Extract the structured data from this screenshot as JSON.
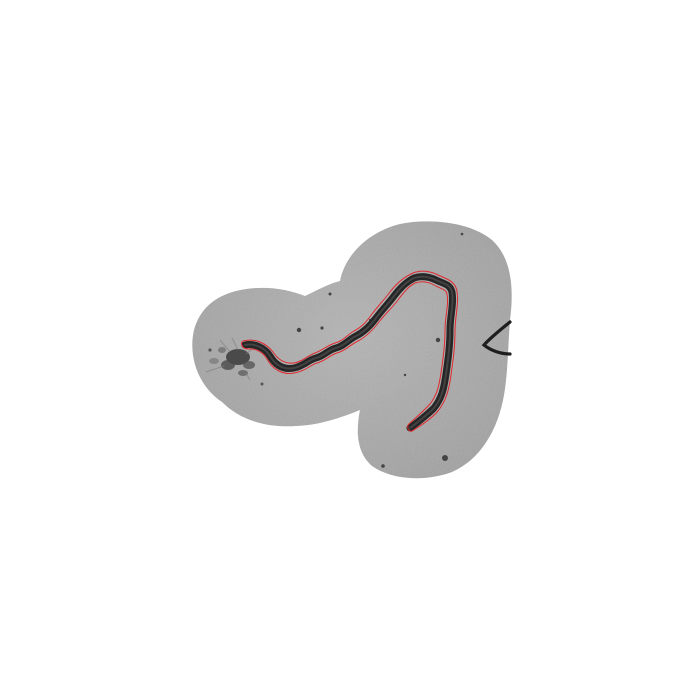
{
  "image": {
    "background_color": "#ffffff",
    "region_color": "#a9a9a9",
    "filament_color": "#2b2b2b",
    "trace_color": "#e0282e"
  }
}
